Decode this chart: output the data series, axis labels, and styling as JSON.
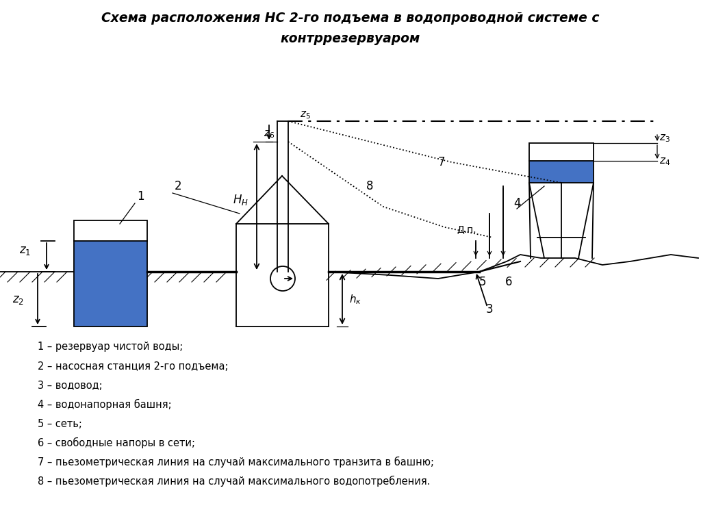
{
  "title_line1": "Схема расположения НС 2-го подъема в водопроводной системе с",
  "title_line2": "контррезервуаром",
  "legend": [
    "1 – резервуар чистой воды;",
    "2 – насосная станция 2-го подъема;",
    "3 – водовод;",
    "4 – водонапорная башня;",
    "5 – сеть;",
    "6 – свободные напоры в сети;",
    "7 – пьезометрическая линия на случай максимального транзита в башню;",
    "8 – пьезометрическая линия на случай максимального водопотребления."
  ],
  "bg_color": "#ffffff",
  "blue_color": "#4472C4",
  "line_color": "#000000"
}
